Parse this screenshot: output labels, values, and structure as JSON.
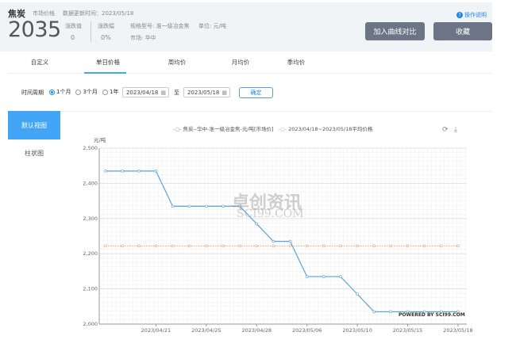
{
  "header": {
    "product": "焦炭",
    "price_type": "市场价格",
    "update_label": "数据更新时间：2023/05/18",
    "price": "2035",
    "change_label": "涨跌值",
    "change_value": "0",
    "change_pct_label": "涨跌幅",
    "change_pct_value": "0%",
    "spec": "规格型号: 准一级冶金焦",
    "unit": "单位: 元/吨",
    "market": "市场: 华中",
    "help": "操作说明",
    "add_compare": "加入曲线对比",
    "favorite": "收藏"
  },
  "tabs": [
    {
      "label": "自定义",
      "active": false
    },
    {
      "label": "单日价格",
      "active": true
    },
    {
      "label": "周均价",
      "active": false
    },
    {
      "label": "月均价",
      "active": false
    },
    {
      "label": "季均价",
      "active": false
    }
  ],
  "filter": {
    "label": "时间周期",
    "options": [
      {
        "label": "1个月",
        "selected": true
      },
      {
        "label": "3个月",
        "selected": false
      },
      {
        "label": "1年",
        "selected": false
      }
    ],
    "start": "2023/04/18",
    "to": "至",
    "end": "2023/05/18",
    "confirm": "确定"
  },
  "views": [
    {
      "label": "默认视图",
      "active": true
    },
    {
      "label": "柱状图",
      "active": false
    }
  ],
  "watermark": {
    "cn": "卓创资讯",
    "en": "SCI99.COM",
    "powered": "POWERED BY SCI99.COM"
  },
  "colors": {
    "accent": "#42a5f5",
    "series": "#5ba3d6",
    "average": "#e8a070",
    "button": "#6b7585"
  },
  "chart_data": {
    "type": "line",
    "ylabel": "元/吨",
    "ylim": [
      2000,
      2500
    ],
    "yticks": [
      "2,000",
      "2,100",
      "2,200",
      "2,300",
      "2,400",
      "2,500"
    ],
    "grid": true,
    "legend_position": "top",
    "x": [
      "2023/04/18",
      "2023/04/19",
      "2023/04/20",
      "2023/04/21",
      "2023/04/23",
      "2023/04/24",
      "2023/04/25",
      "2023/04/26",
      "2023/04/27",
      "2023/04/28",
      "2023/05/04",
      "2023/05/05",
      "2023/05/06",
      "2023/05/08",
      "2023/05/09",
      "2023/05/10",
      "2023/05/11",
      "2023/05/12",
      "2023/05/15",
      "2023/05/16",
      "2023/05/17",
      "2023/05/18"
    ],
    "xticks": [
      "2023/04/21",
      "2023/04/25",
      "2023/04/28",
      "2023/05/06",
      "2023/05/10",
      "2023/05/15",
      "2023/05/18"
    ],
    "series": [
      {
        "name": "焦炭--华中-准一级冶金焦-元/吨[市场价]",
        "values": [
          2435,
          2435,
          2435,
          2435,
          2335,
          2335,
          2335,
          2335,
          2335,
          2285,
          2235,
          2235,
          2135,
          2135,
          2135,
          2085,
          2035,
          2035,
          2035,
          2035,
          2035,
          2035
        ]
      },
      {
        "name": "2023/04/18~2023/05/18平均价格",
        "values": [
          2222,
          2222,
          2222,
          2222,
          2222,
          2222,
          2222,
          2222,
          2222,
          2222,
          2222,
          2222,
          2222,
          2222,
          2222,
          2222,
          2222,
          2222,
          2222,
          2222,
          2222,
          2222
        ]
      }
    ]
  }
}
